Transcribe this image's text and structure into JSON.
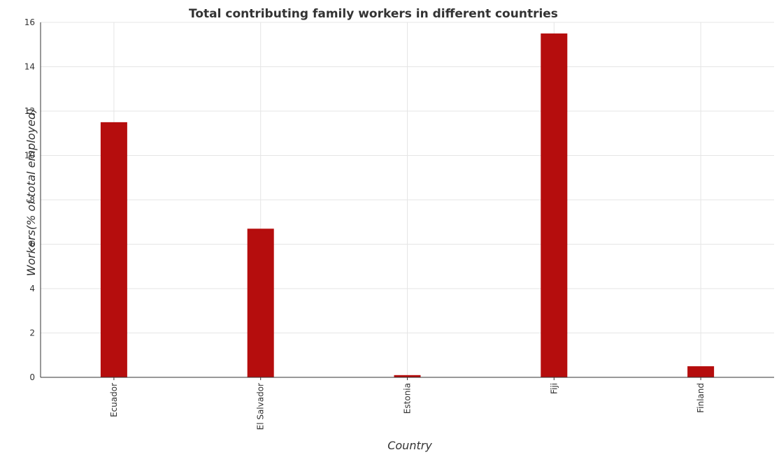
{
  "chart_data": {
    "type": "bar",
    "title": "Total contributing family workers in different countries",
    "xlabel": "Country",
    "ylabel": "Workers(% of total employed)",
    "categories": [
      "Ecuador",
      "El Salvador",
      "Estonia",
      "Fiji",
      "Finland"
    ],
    "values": [
      11.5,
      6.7,
      0.1,
      15.5,
      0.5
    ],
    "ylim": [
      0,
      16
    ],
    "yticks": [
      0,
      2,
      4,
      6,
      8,
      10,
      12,
      14,
      16
    ],
    "grid": true,
    "bar_color": "#b50d0d"
  }
}
